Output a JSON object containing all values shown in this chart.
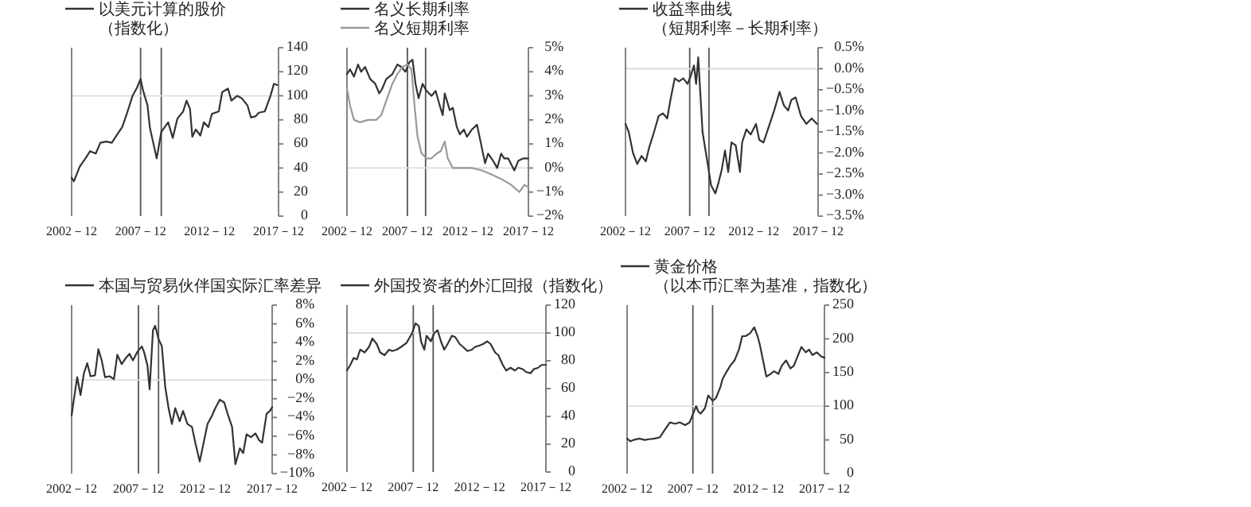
{
  "chart_data": [
    {
      "type": "line",
      "legend": "top",
      "xlim": [
        "2002-12",
        "2017-12"
      ],
      "xticks": [
        {
          "value": "2002-12",
          "label": "2002－12"
        },
        {
          "value": "2007-12",
          "label": "2007－12"
        },
        {
          "value": "2012-12",
          "label": "2012－12"
        },
        {
          "value": "2017-12",
          "label": "2017－12"
        }
      ],
      "ylim": [
        0,
        140
      ],
      "yticks": [
        0,
        20,
        40,
        60,
        80,
        100,
        120,
        140
      ],
      "ref_lines": [
        {
          "axis": "x",
          "value": "2007-12",
          "color": "#555555"
        },
        {
          "axis": "x",
          "value": "2009-06",
          "color": "#555555"
        },
        {
          "axis": "y",
          "value": 100,
          "color": "#dddddd"
        }
      ],
      "series": [
        {
          "name": "以美元计算的股价（指数化）",
          "color": "#333333",
          "x": [
            "2002-12",
            "2003-02",
            "2003-07",
            "2003-12",
            "2004-04",
            "2004-09",
            "2005-01",
            "2005-06",
            "2005-11",
            "2006-03",
            "2006-08",
            "2006-12",
            "2007-05",
            "2007-09",
            "2007-12",
            "2008-02",
            "2008-06",
            "2008-08",
            "2008-11",
            "2009-02",
            "2009-06",
            "2009-09",
            "2009-12",
            "2010-04",
            "2010-08",
            "2011-01",
            "2011-04",
            "2011-07",
            "2011-09",
            "2011-12",
            "2012-04",
            "2012-07",
            "2012-11",
            "2013-02",
            "2013-08",
            "2013-11",
            "2014-04",
            "2014-07",
            "2014-12",
            "2015-04",
            "2015-09",
            "2015-12",
            "2016-04",
            "2016-07",
            "2016-12",
            "2017-05",
            "2017-08",
            "2017-11"
          ],
          "values": [
            32,
            29,
            41,
            48,
            54,
            52,
            61,
            62,
            61,
            67,
            74,
            85,
            100,
            107,
            114,
            105,
            92,
            74,
            61,
            48,
            70,
            74,
            78,
            65,
            81,
            87,
            96,
            89,
            66,
            72,
            67,
            78,
            74,
            85,
            87,
            103,
            106,
            96,
            100,
            98,
            92,
            82,
            83,
            86,
            87,
            100,
            110,
            109
          ]
        }
      ]
    },
    {
      "type": "line",
      "legend": "top",
      "xlim": [
        "2002-12",
        "2017-12"
      ],
      "xticks": [
        {
          "value": "2002-12",
          "label": "2002－12"
        },
        {
          "value": "2007-12",
          "label": "2007－12"
        },
        {
          "value": "2012-12",
          "label": "2012－12"
        },
        {
          "value": "2017-12",
          "label": "2017－12"
        }
      ],
      "ylim": [
        -2,
        5
      ],
      "yticks": [
        {
          "value": 5,
          "label": "5%"
        },
        {
          "value": 4,
          "label": "4%"
        },
        {
          "value": 3,
          "label": "3%"
        },
        {
          "value": 2,
          "label": "2%"
        },
        {
          "value": 1,
          "label": "1%"
        },
        {
          "value": 0,
          "label": "0%"
        },
        {
          "value": -1,
          "label": "−1%"
        },
        {
          "value": -2,
          "label": "−2%"
        }
      ],
      "ref_lines": [
        {
          "axis": "x",
          "value": "2007-12",
          "color": "#555555"
        },
        {
          "axis": "x",
          "value": "2009-06",
          "color": "#555555"
        },
        {
          "axis": "y",
          "value": 0,
          "color": "#dddddd"
        }
      ],
      "series": [
        {
          "name": "名义长期利率",
          "color": "#333333",
          "x": [
            "2002-12",
            "2003-03",
            "2003-07",
            "2003-11",
            "2004-02",
            "2004-06",
            "2004-11",
            "2005-04",
            "2005-08",
            "2005-11",
            "2006-03",
            "2006-09",
            "2007-02",
            "2007-06",
            "2007-10",
            "2008-02",
            "2008-05",
            "2008-08",
            "2008-11",
            "2009-03",
            "2009-07",
            "2009-12",
            "2010-04",
            "2010-08",
            "2010-11",
            "2011-01",
            "2011-06",
            "2011-09",
            "2012-01",
            "2012-04",
            "2012-08",
            "2012-11",
            "2013-04",
            "2013-09",
            "2014-01",
            "2014-05",
            "2014-08",
            "2015-01",
            "2015-05",
            "2015-09",
            "2015-12",
            "2016-04",
            "2016-10",
            "2017-02",
            "2017-07",
            "2017-12"
          ],
          "values": [
            3.9,
            4.1,
            3.8,
            4.3,
            4.0,
            4.2,
            3.7,
            3.5,
            3.1,
            3.3,
            3.7,
            3.9,
            4.3,
            4.2,
            4.0,
            4.4,
            4.5,
            3.5,
            2.9,
            3.5,
            3.2,
            3.0,
            3.2,
            2.6,
            2.2,
            3.1,
            2.4,
            2.5,
            1.7,
            1.4,
            1.6,
            1.3,
            1.6,
            1.8,
            1.0,
            0.2,
            0.6,
            0.3,
            0.0,
            0.6,
            0.4,
            0.4,
            -0.1,
            0.3,
            0.4,
            0.4
          ]
        },
        {
          "name": "名义短期利率",
          "color": "#999999",
          "x": [
            "2002-12",
            "2003-03",
            "2003-07",
            "2004-01",
            "2004-09",
            "2005-05",
            "2005-10",
            "2006-03",
            "2006-09",
            "2007-02",
            "2007-07",
            "2007-12",
            "2008-04",
            "2008-07",
            "2008-10",
            "2009-02",
            "2009-07",
            "2009-12",
            "2010-05",
            "2010-09",
            "2011-01",
            "2011-04",
            "2011-09",
            "2012-05",
            "2013-04",
            "2014-02",
            "2015-01",
            "2015-11",
            "2016-07",
            "2017-03",
            "2017-08",
            "2017-12"
          ],
          "values": [
            3.3,
            2.6,
            2.0,
            1.9,
            2.0,
            2.0,
            2.2,
            2.8,
            3.5,
            3.9,
            4.2,
            4.3,
            4.1,
            2.6,
            1.3,
            0.6,
            0.4,
            0.4,
            0.6,
            0.7,
            1.1,
            0.4,
            0.0,
            0.0,
            0.0,
            -0.1,
            -0.3,
            -0.5,
            -0.7,
            -1.0,
            -0.7,
            -0.8
          ]
        }
      ]
    },
    {
      "type": "line",
      "legend": "top",
      "xlim": [
        "2002-12",
        "2017-12"
      ],
      "xticks": [
        {
          "value": "2002-12",
          "label": "2002－12"
        },
        {
          "value": "2007-12",
          "label": "2007－12"
        },
        {
          "value": "2012-12",
          "label": "2012－12"
        },
        {
          "value": "2017-12",
          "label": "2017－12"
        }
      ],
      "ylim": [
        -3.5,
        0.5
      ],
      "yticks": [
        {
          "value": 0.5,
          "label": "0.5%"
        },
        {
          "value": 0,
          "label": "0.0%"
        },
        {
          "value": -0.5,
          "label": "−0.5%"
        },
        {
          "value": -1,
          "label": "−1.0%"
        },
        {
          "value": -1.5,
          "label": "−1.5%"
        },
        {
          "value": -2,
          "label": "−2.0%"
        },
        {
          "value": -2.5,
          "label": "−2.5%"
        },
        {
          "value": -3,
          "label": "−3.0%"
        },
        {
          "value": -3.5,
          "label": "−3.5%"
        }
      ],
      "ref_lines": [
        {
          "axis": "x",
          "value": "2007-12",
          "color": "#555555"
        },
        {
          "axis": "x",
          "value": "2009-06",
          "color": "#555555"
        },
        {
          "axis": "y",
          "value": 0,
          "color": "#dddddd"
        }
      ],
      "series": [
        {
          "name": "收益率曲线（短期利率－长期利率）",
          "color": "#333333",
          "x": [
            "2002-12",
            "2003-03",
            "2003-07",
            "2003-11",
            "2004-03",
            "2004-07",
            "2004-10",
            "2005-02",
            "2005-07",
            "2005-11",
            "2006-03",
            "2006-06",
            "2006-10",
            "2007-02",
            "2007-06",
            "2007-10",
            "2008-01",
            "2008-04",
            "2008-06",
            "2008-08",
            "2008-10",
            "2008-12",
            "2009-04",
            "2009-08",
            "2009-12",
            "2010-03",
            "2010-06",
            "2010-09",
            "2010-12",
            "2011-03",
            "2011-07",
            "2011-11",
            "2012-01",
            "2012-05",
            "2012-09",
            "2013-02",
            "2013-05",
            "2013-09",
            "2014-02",
            "2014-07",
            "2014-12",
            "2015-04",
            "2015-08",
            "2015-11",
            "2016-03",
            "2016-08",
            "2017-01",
            "2017-06",
            "2017-11"
          ],
          "values": [
            -1.31,
            -1.5,
            -2.0,
            -2.26,
            -2.07,
            -2.2,
            -1.88,
            -1.56,
            -1.12,
            -1.06,
            -1.18,
            -0.74,
            -0.23,
            -0.3,
            -0.23,
            -0.36,
            -0.17,
            0.08,
            -0.36,
            0.27,
            -0.61,
            -1.5,
            -2.13,
            -2.77,
            -2.96,
            -2.7,
            -2.39,
            -1.94,
            -2.45,
            -1.75,
            -1.82,
            -2.45,
            -1.75,
            -1.44,
            -1.56,
            -1.31,
            -1.69,
            -1.75,
            -1.37,
            -0.99,
            -0.55,
            -0.87,
            -0.99,
            -0.74,
            -0.68,
            -1.12,
            -1.31,
            -1.18,
            -1.31
          ]
        }
      ]
    },
    {
      "type": "line",
      "legend": "top",
      "xlim": [
        "2002-12",
        "2017-12"
      ],
      "xticks": [
        {
          "value": "2002-12",
          "label": "2002－12"
        },
        {
          "value": "2007-12",
          "label": "2007－12"
        },
        {
          "value": "2012-12",
          "label": "2012－12"
        },
        {
          "value": "2017-12",
          "label": "2017－12"
        }
      ],
      "ylim": [
        -10,
        8
      ],
      "yticks": [
        {
          "value": 8,
          "label": "8%"
        },
        {
          "value": 6,
          "label": "6%"
        },
        {
          "value": 4,
          "label": "4%"
        },
        {
          "value": 2,
          "label": "2%"
        },
        {
          "value": 0,
          "label": "0%"
        },
        {
          "value": -2,
          "label": "−2%"
        },
        {
          "value": -4,
          "label": "−4%"
        },
        {
          "value": -6,
          "label": "−6%"
        },
        {
          "value": -8,
          "label": "−8%"
        },
        {
          "value": -10,
          "label": "−10%"
        }
      ],
      "ref_lines": [
        {
          "axis": "x",
          "value": "2007-12",
          "color": "#555555"
        },
        {
          "axis": "x",
          "value": "2009-06",
          "color": "#555555"
        },
        {
          "axis": "y",
          "value": 0,
          "color": "#dddddd"
        }
      ],
      "series": [
        {
          "name": "本国与贸易伙伴国实际汇率差异",
          "color": "#333333",
          "x": [
            "2002-12",
            "2003-02",
            "2003-05",
            "2003-08",
            "2003-11",
            "2004-02",
            "2004-05",
            "2004-09",
            "2004-12",
            "2005-03",
            "2005-06",
            "2005-10",
            "2006-02",
            "2006-05",
            "2006-09",
            "2007-01",
            "2007-04",
            "2007-07",
            "2007-11",
            "2008-03",
            "2008-05",
            "2008-08",
            "2008-10",
            "2009-01",
            "2009-03",
            "2009-06",
            "2009-09",
            "2009-12",
            "2010-03",
            "2010-06",
            "2010-09",
            "2011-01",
            "2011-04",
            "2011-08",
            "2011-12",
            "2012-03",
            "2012-07",
            "2012-11",
            "2013-02",
            "2013-06",
            "2013-09",
            "2014-01",
            "2014-05",
            "2014-08",
            "2014-12",
            "2015-03",
            "2015-07",
            "2015-10",
            "2016-01",
            "2016-05",
            "2016-09",
            "2016-12",
            "2017-03",
            "2017-07",
            "2017-10",
            "2017-12"
          ],
          "values": [
            -3.8,
            -2.1,
            0.3,
            -1.6,
            0.7,
            1.8,
            0.4,
            0.5,
            3.3,
            2.1,
            0.3,
            0.4,
            0.1,
            2.7,
            1.7,
            2.4,
            2.8,
            2.1,
            3.0,
            3.6,
            3.0,
            1.6,
            -1.0,
            5.3,
            5.8,
            4.4,
            3.6,
            -0.7,
            -3.0,
            -4.7,
            -3.0,
            -4.4,
            -3.3,
            -4.7,
            -5.0,
            -6.7,
            -8.7,
            -6.4,
            -4.7,
            -3.8,
            -3.0,
            -2.1,
            -2.4,
            -3.6,
            -5.0,
            -9.0,
            -7.3,
            -7.8,
            -5.8,
            -6.1,
            -5.7,
            -6.4,
            -6.7,
            -3.6,
            -3.3,
            -2.9
          ]
        }
      ]
    },
    {
      "type": "line",
      "legend": "top",
      "xlim": [
        "2002-12",
        "2017-12"
      ],
      "xticks": [
        {
          "value": "2002-12",
          "label": "2002－12"
        },
        {
          "value": "2007-12",
          "label": "2007－12"
        },
        {
          "value": "2012-12",
          "label": "2012－12"
        },
        {
          "value": "2017-12",
          "label": "2017－12"
        }
      ],
      "ylim": [
        0,
        120
      ],
      "yticks": [
        0,
        20,
        40,
        60,
        80,
        100,
        120
      ],
      "ref_lines": [
        {
          "axis": "x",
          "value": "2007-12",
          "color": "#555555"
        },
        {
          "axis": "x",
          "value": "2009-06",
          "color": "#555555"
        },
        {
          "axis": "y",
          "value": 100,
          "color": "#dddddd"
        }
      ],
      "series": [
        {
          "name": "外国投资者的外汇回报（指数化）",
          "color": "#333333",
          "x": [
            "2002-12",
            "2003-03",
            "2003-06",
            "2003-09",
            "2003-12",
            "2004-04",
            "2004-08",
            "2004-11",
            "2005-03",
            "2005-06",
            "2005-10",
            "2006-02",
            "2006-05",
            "2006-09",
            "2007-01",
            "2007-06",
            "2007-11",
            "2008-02",
            "2008-05",
            "2008-07",
            "2008-10",
            "2008-12",
            "2009-04",
            "2009-07",
            "2009-10",
            "2010-01",
            "2010-04",
            "2010-07",
            "2010-11",
            "2011-02",
            "2011-06",
            "2011-09",
            "2012-01",
            "2012-05",
            "2012-08",
            "2012-12",
            "2013-03",
            "2013-07",
            "2013-10",
            "2014-02",
            "2014-05",
            "2014-09",
            "2014-12",
            "2015-04",
            "2015-08",
            "2015-11",
            "2016-03",
            "2016-06",
            "2016-10",
            "2017-01",
            "2017-05",
            "2017-08",
            "2017-12"
          ],
          "values": [
            73,
            77,
            82,
            81,
            88,
            86,
            90,
            96,
            92,
            86,
            84,
            88,
            87,
            88,
            90,
            93,
            100,
            107,
            105,
            94,
            88,
            98,
            94,
            100,
            102,
            94,
            88,
            92,
            98,
            97,
            92,
            90,
            87,
            88,
            90,
            91,
            92,
            94,
            92,
            86,
            84,
            77,
            73,
            75,
            73,
            75,
            74,
            72,
            71,
            74,
            75,
            77,
            77
          ]
        }
      ]
    },
    {
      "type": "line",
      "legend": "top",
      "xlim": [
        "2002-12",
        "2017-12"
      ],
      "xticks": [
        {
          "value": "2002-12",
          "label": "2002－12"
        },
        {
          "value": "2007-12",
          "label": "2007－12"
        },
        {
          "value": "2012-12",
          "label": "2012－12"
        },
        {
          "value": "2017-12",
          "label": "2017－12"
        }
      ],
      "ylim": [
        0,
        250
      ],
      "yticks": [
        0,
        50,
        100,
        150,
        200,
        250
      ],
      "ref_lines": [
        {
          "axis": "x",
          "value": "2007-12",
          "color": "#555555"
        },
        {
          "axis": "x",
          "value": "2009-06",
          "color": "#555555"
        },
        {
          "axis": "y",
          "value": 100,
          "color": "#dddddd"
        }
      ],
      "series": [
        {
          "name": "黄金价格（以本币汇率为基准，指数化）",
          "color": "#333333",
          "x": [
            "2002-12",
            "2003-03",
            "2003-06",
            "2003-11",
            "2004-04",
            "2004-08",
            "2005-01",
            "2005-06",
            "2005-10",
            "2006-03",
            "2006-08",
            "2006-12",
            "2007-05",
            "2007-09",
            "2007-12",
            "2008-03",
            "2008-05",
            "2008-07",
            "2008-11",
            "2009-02",
            "2009-06",
            "2009-09",
            "2010-01",
            "2010-03",
            "2010-07",
            "2010-10",
            "2011-02",
            "2011-06",
            "2011-09",
            "2011-12",
            "2012-04",
            "2012-08",
            "2012-11",
            "2013-01",
            "2013-04",
            "2013-07",
            "2013-11",
            "2014-02",
            "2014-06",
            "2014-09",
            "2015-01",
            "2015-05",
            "2015-08",
            "2015-11",
            "2016-03",
            "2016-07",
            "2016-10",
            "2017-01",
            "2017-05",
            "2017-09",
            "2017-12"
          ],
          "values": [
            52,
            48,
            50,
            52,
            50,
            51,
            52,
            54,
            64,
            76,
            74,
            76,
            72,
            76,
            88,
            100,
            92,
            89,
            97,
            116,
            108,
            112,
            128,
            140,
            152,
            160,
            168,
            184,
            204,
            204,
            208,
            217,
            204,
            192,
            168,
            144,
            148,
            152,
            148,
            160,
            168,
            156,
            160,
            172,
            188,
            180,
            184,
            176,
            180,
            174,
            172
          ]
        }
      ]
    }
  ]
}
